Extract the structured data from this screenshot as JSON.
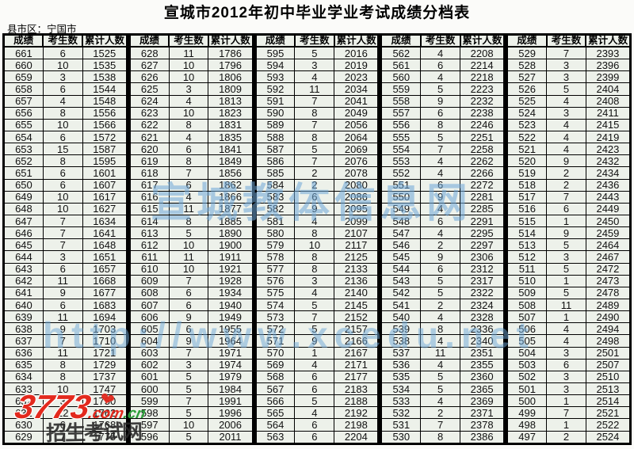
{
  "title": "宣城市2012年初中毕业学业考试成绩分档表",
  "region": {
    "label": "县市区：",
    "value": "宁国市"
  },
  "watermarks": {
    "site_name": "宣城教体信息网",
    "site_url": "http://www.xcedu.net",
    "brand_number": "3773",
    "brand_domain": ".com",
    "brand_tld": ".cn",
    "heart": "❤",
    "stamp": "招生考试网"
  },
  "colors": {
    "line": "#000000",
    "cell-bg": "#edf1ea",
    "wm-blue": "#6fa8d8",
    "brand-red": "#e3291d",
    "brand-green": "#2fa03c",
    "stamp-dark": "#262626"
  },
  "table": {
    "headers": [
      "成绩",
      "考生数",
      "累计人数"
    ],
    "groups": [
      [
        [
          661,
          6,
          1525
        ],
        [
          660,
          10,
          1535
        ],
        [
          659,
          3,
          1538
        ],
        [
          658,
          6,
          1544
        ],
        [
          657,
          4,
          1548
        ],
        [
          656,
          8,
          1556
        ],
        [
          655,
          10,
          1566
        ],
        [
          654,
          6,
          1572
        ],
        [
          653,
          15,
          1587
        ],
        [
          652,
          8,
          1595
        ],
        [
          651,
          6,
          1601
        ],
        [
          650,
          6,
          1607
        ],
        [
          649,
          10,
          1617
        ],
        [
          648,
          10,
          1627
        ],
        [
          647,
          7,
          1634
        ],
        [
          646,
          7,
          1641
        ],
        [
          645,
          7,
          1648
        ],
        [
          644,
          3,
          1651
        ],
        [
          643,
          6,
          1657
        ],
        [
          642,
          11,
          1668
        ],
        [
          641,
          9,
          1677
        ],
        [
          640,
          6,
          1683
        ],
        [
          639,
          11,
          1694
        ],
        [
          638,
          9,
          1703
        ],
        [
          637,
          7,
          1710
        ],
        [
          636,
          11,
          1721
        ],
        [
          635,
          8,
          1729
        ],
        [
          634,
          8,
          1737
        ],
        [
          633,
          10,
          1747
        ],
        [
          632,
          3,
          1750
        ],
        [
          631,
          12,
          1762
        ],
        [
          630,
          6,
          1768
        ],
        [
          629,
          7,
          1775
        ]
      ],
      [
        [
          628,
          11,
          1786
        ],
        [
          627,
          10,
          1796
        ],
        [
          626,
          10,
          1806
        ],
        [
          625,
          3,
          1809
        ],
        [
          624,
          4,
          1813
        ],
        [
          623,
          10,
          1823
        ],
        [
          622,
          8,
          1831
        ],
        [
          621,
          4,
          1835
        ],
        [
          620,
          6,
          1841
        ],
        [
          619,
          8,
          1849
        ],
        [
          618,
          7,
          1856
        ],
        [
          617,
          6,
          1862
        ],
        [
          616,
          4,
          1866
        ],
        [
          615,
          11,
          1877
        ],
        [
          614,
          8,
          1885
        ],
        [
          613,
          5,
          1890
        ],
        [
          612,
          10,
          1900
        ],
        [
          611,
          11,
          1911
        ],
        [
          610,
          10,
          1921
        ],
        [
          609,
          7,
          1928
        ],
        [
          608,
          6,
          1934
        ],
        [
          607,
          6,
          1940
        ],
        [
          606,
          9,
          1949
        ],
        [
          605,
          6,
          1955
        ],
        [
          604,
          9,
          1964
        ],
        [
          603,
          7,
          1971
        ],
        [
          602,
          3,
          1974
        ],
        [
          601,
          5,
          1979
        ],
        [
          600,
          5,
          1984
        ],
        [
          599,
          7,
          1991
        ],
        [
          598,
          5,
          1996
        ],
        [
          597,
          10,
          2006
        ],
        [
          596,
          5,
          2011
        ]
      ],
      [
        [
          595,
          5,
          2016
        ],
        [
          594,
          3,
          2019
        ],
        [
          593,
          4,
          2023
        ],
        [
          592,
          11,
          2034
        ],
        [
          591,
          7,
          2041
        ],
        [
          590,
          8,
          2049
        ],
        [
          589,
          7,
          2056
        ],
        [
          588,
          8,
          2064
        ],
        [
          587,
          5,
          2069
        ],
        [
          586,
          7,
          2076
        ],
        [
          585,
          2,
          2078
        ],
        [
          584,
          2,
          2080
        ],
        [
          583,
          6,
          2086
        ],
        [
          582,
          9,
          2095
        ],
        [
          581,
          4,
          2099
        ],
        [
          580,
          8,
          2107
        ],
        [
          579,
          10,
          2117
        ],
        [
          578,
          8,
          2125
        ],
        [
          577,
          8,
          2133
        ],
        [
          576,
          3,
          2136
        ],
        [
          575,
          4,
          2140
        ],
        [
          574,
          5,
          2145
        ],
        [
          573,
          7,
          2152
        ],
        [
          572,
          5,
          2157
        ],
        [
          571,
          9,
          2166
        ],
        [
          570,
          1,
          2167
        ],
        [
          569,
          4,
          2171
        ],
        [
          568,
          6,
          2177
        ],
        [
          567,
          6,
          2183
        ],
        [
          566,
          5,
          2188
        ],
        [
          565,
          4,
          2192
        ],
        [
          564,
          6,
          2198
        ],
        [
          563,
          6,
          2204
        ]
      ],
      [
        [
          562,
          4,
          2208
        ],
        [
          561,
          6,
          2214
        ],
        [
          560,
          4,
          2218
        ],
        [
          559,
          5,
          2223
        ],
        [
          558,
          9,
          2232
        ],
        [
          557,
          6,
          2238
        ],
        [
          556,
          8,
          2246
        ],
        [
          555,
          5,
          2251
        ],
        [
          554,
          7,
          2258
        ],
        [
          553,
          4,
          2262
        ],
        [
          552,
          4,
          2266
        ],
        [
          551,
          6,
          2272
        ],
        [
          550,
          9,
          2281
        ],
        [
          549,
          4,
          2285
        ],
        [
          548,
          6,
          2291
        ],
        [
          547,
          4,
          2295
        ],
        [
          546,
          2,
          2297
        ],
        [
          545,
          9,
          2306
        ],
        [
          544,
          6,
          2312
        ],
        [
          543,
          5,
          2317
        ],
        [
          542,
          5,
          2322
        ],
        [
          541,
          2,
          2324
        ],
        [
          540,
          4,
          2328
        ],
        [
          539,
          8,
          2336
        ],
        [
          538,
          4,
          2340
        ],
        [
          537,
          11,
          2351
        ],
        [
          536,
          4,
          2355
        ],
        [
          535,
          5,
          2360
        ],
        [
          534,
          5,
          2365
        ],
        [
          533,
          4,
          2369
        ],
        [
          532,
          2,
          2371
        ],
        [
          531,
          7,
          2378
        ],
        [
          530,
          8,
          2386
        ]
      ],
      [
        [
          529,
          7,
          2393
        ],
        [
          528,
          3,
          2396
        ],
        [
          527,
          3,
          2399
        ],
        [
          526,
          5,
          2404
        ],
        [
          525,
          4,
          2408
        ],
        [
          524,
          3,
          2411
        ],
        [
          523,
          4,
          2415
        ],
        [
          522,
          4,
          2419
        ],
        [
          521,
          4,
          2423
        ],
        [
          520,
          9,
          2432
        ],
        [
          519,
          2,
          2434
        ],
        [
          518,
          2,
          2436
        ],
        [
          517,
          7,
          2443
        ],
        [
          516,
          6,
          2449
        ],
        [
          515,
          1,
          2450
        ],
        [
          514,
          9,
          2459
        ],
        [
          513,
          5,
          2464
        ],
        [
          512,
          3,
          2467
        ],
        [
          511,
          5,
          2472
        ],
        [
          510,
          1,
          2473
        ],
        [
          509,
          5,
          2478
        ],
        [
          508,
          11,
          2489
        ],
        [
          507,
          1,
          2490
        ],
        [
          506,
          4,
          2494
        ],
        [
          505,
          4,
          2498
        ],
        [
          504,
          3,
          2501
        ],
        [
          503,
          6,
          2507
        ],
        [
          502,
          3,
          2510
        ],
        [
          501,
          3,
          2513
        ],
        [
          500,
          1,
          2514
        ],
        [
          499,
          7,
          2521
        ],
        [
          498,
          1,
          2522
        ],
        [
          497,
          2,
          2524
        ]
      ]
    ]
  }
}
